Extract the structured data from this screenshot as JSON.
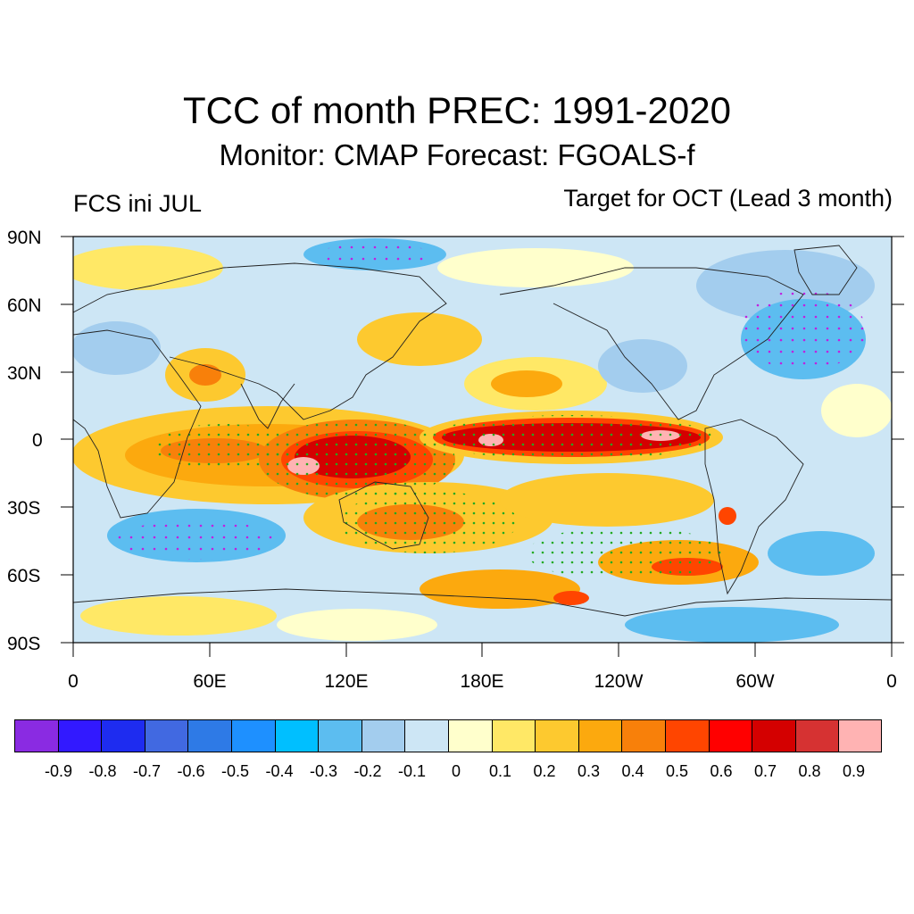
{
  "title": "TCC of month PREC: 1991-2020",
  "subtitle": "Monitor: CMAP   Forecast: FGOALS-f",
  "left_label": "FCS ini JUL",
  "right_label": "Target for OCT (Lead 3 month)",
  "y_ticks": [
    "90N",
    "60N",
    "30N",
    "0",
    "30S",
    "60S",
    "90S"
  ],
  "x_ticks": [
    "0",
    "60E",
    "120E",
    "180E",
    "120W",
    "60W",
    "0"
  ],
  "colorbar": {
    "colors": [
      "#8a2be2",
      "#3219ff",
      "#1e2cf0",
      "#4169e1",
      "#2e7ae6",
      "#1e90ff",
      "#00bfff",
      "#5cbdf0",
      "#a3cdee",
      "#cde6f5",
      "#ffffcc",
      "#ffe866",
      "#fdc92f",
      "#fca90e",
      "#f8800a",
      "#ff4500",
      "#ff0000",
      "#d40000",
      "#d63232",
      "#ffb3b3"
    ],
    "labels": [
      "-0.9",
      "-0.8",
      "-0.7",
      "-0.6",
      "-0.5",
      "-0.4",
      "-0.3",
      "-0.2",
      "-0.1",
      "0",
      "0.1",
      "0.2",
      "0.3",
      "0.4",
      "0.5",
      "0.6",
      "0.7",
      "0.8",
      "0.9"
    ]
  }
}
